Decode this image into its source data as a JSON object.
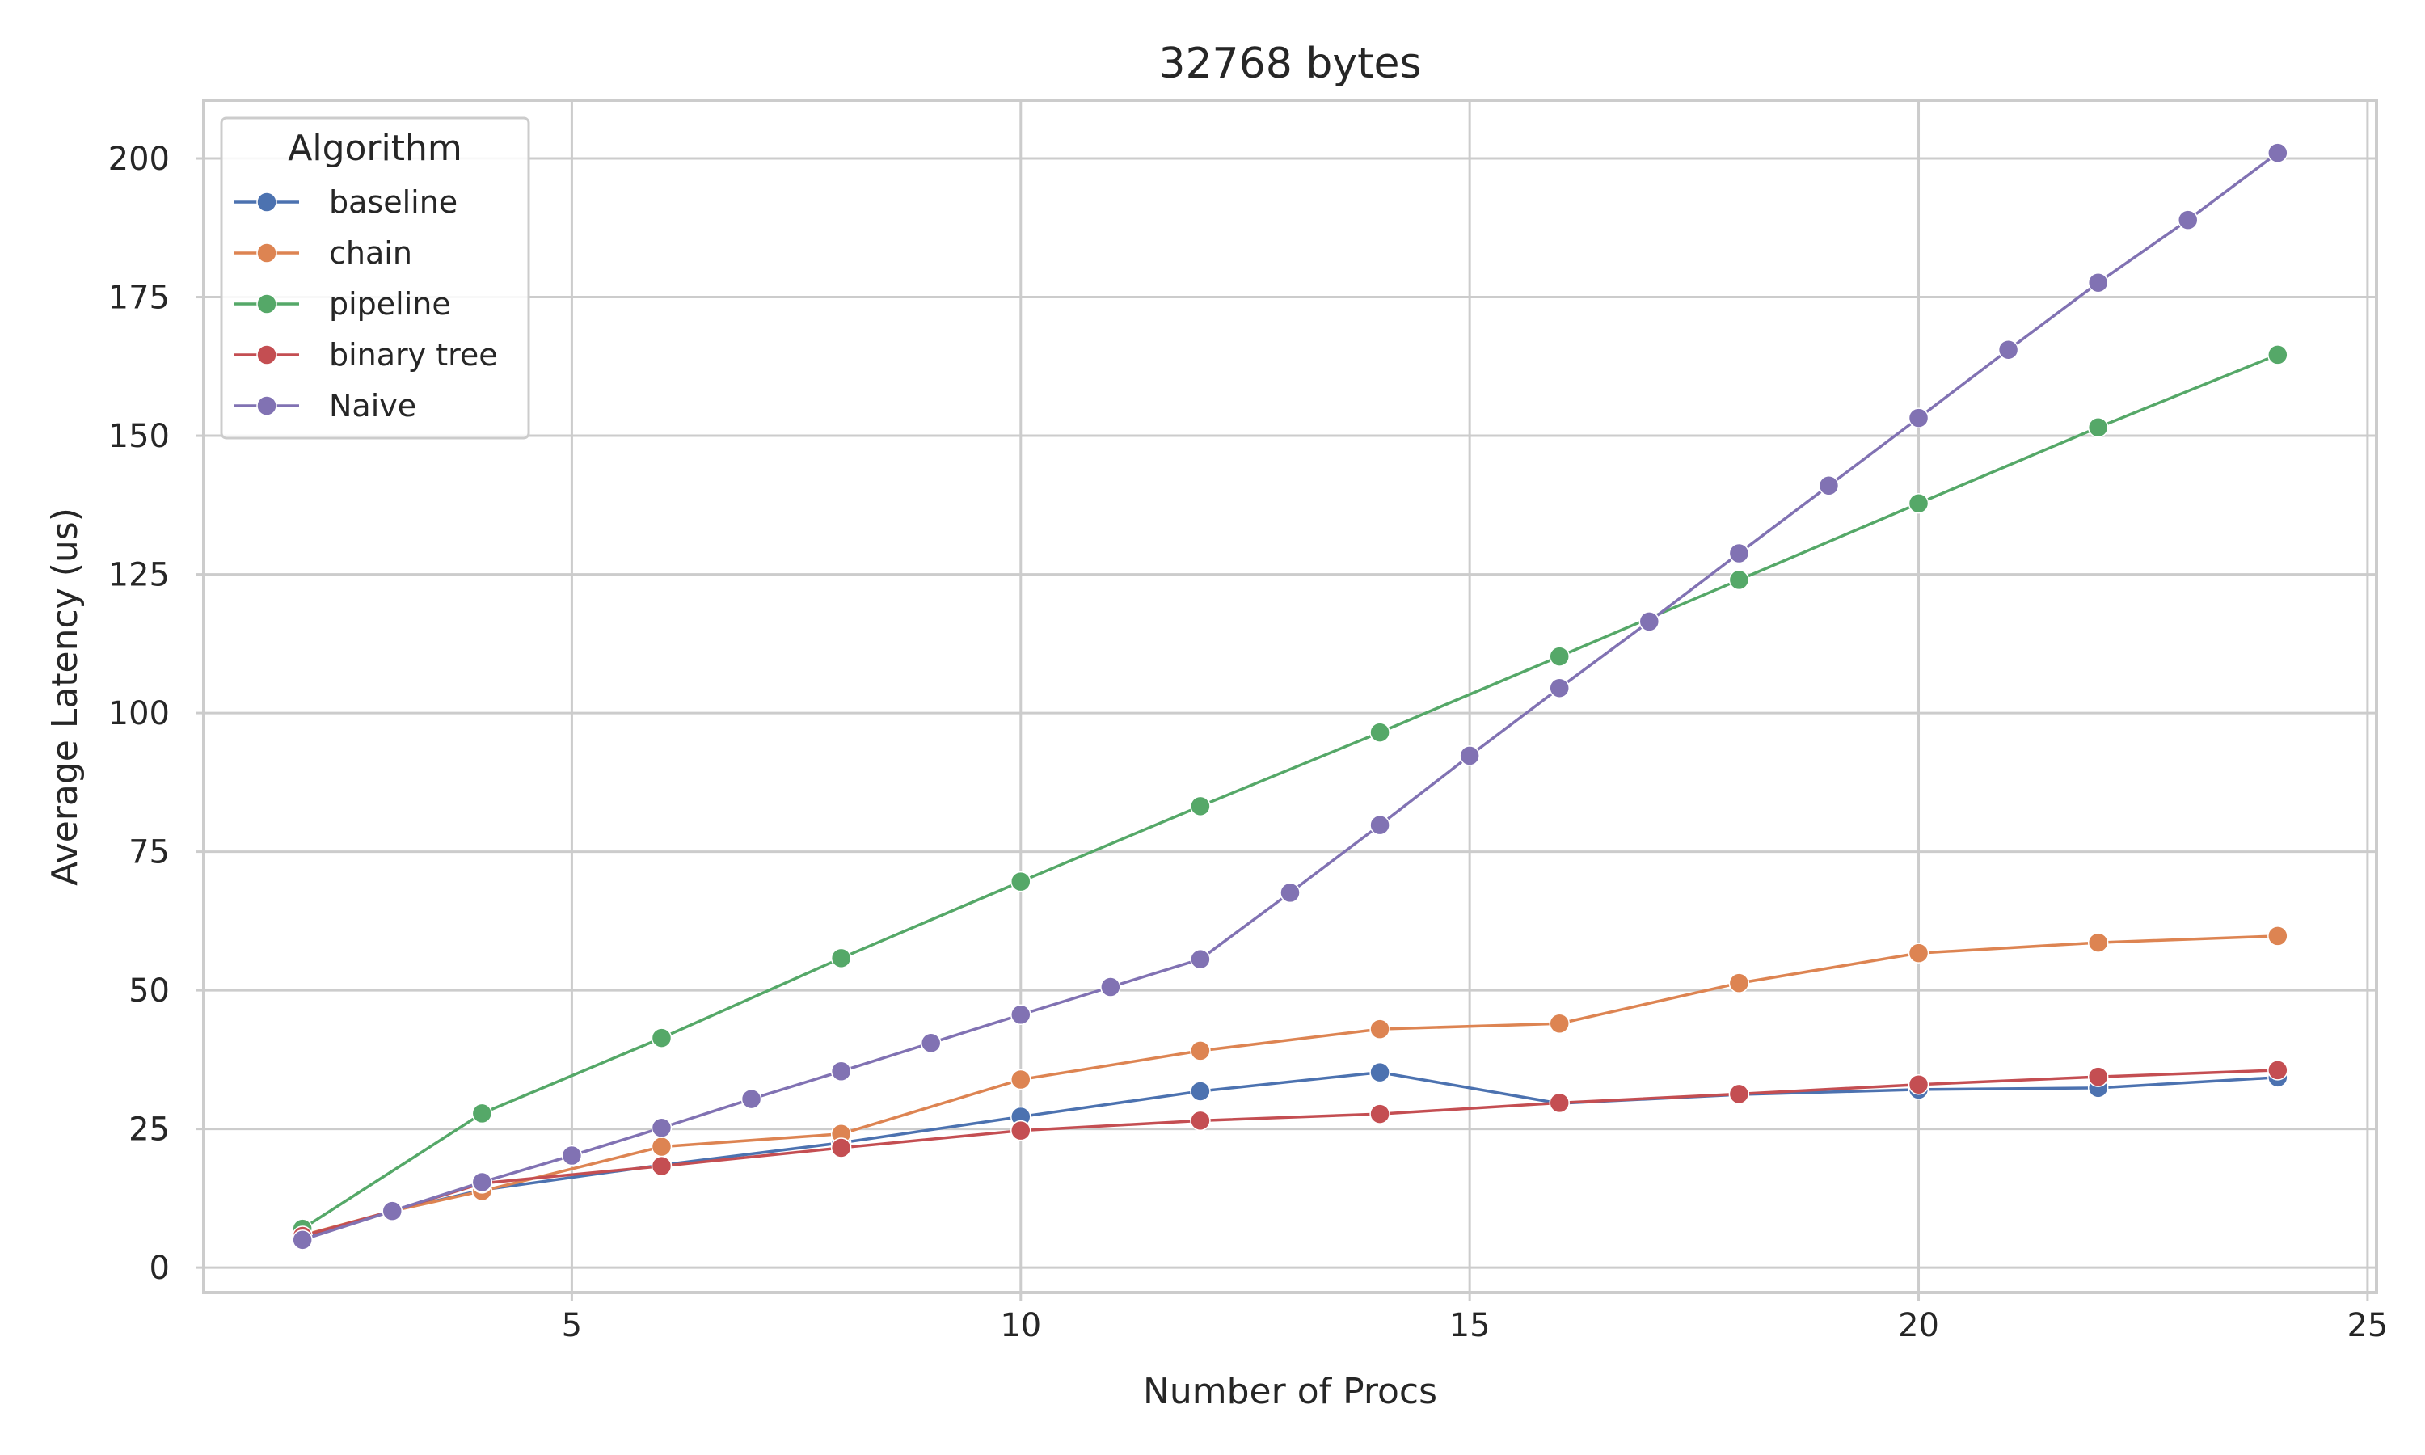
{
  "chart_data": {
    "type": "line",
    "title": "32768 bytes",
    "xlabel": "Number of Procs",
    "ylabel": "Average Latency (us)",
    "xlim": [
      0.9,
      25.1
    ],
    "ylim": [
      -4.5,
      210.5
    ],
    "xticks": [
      5,
      10,
      15,
      20,
      25
    ],
    "yticks": [
      0,
      25,
      50,
      75,
      100,
      125,
      150,
      175,
      200
    ],
    "grid": true,
    "legend": {
      "title": "Algorithm",
      "placement": "top-left"
    },
    "series": [
      {
        "name": "baseline",
        "color": "#4c72b0",
        "x": [
          2,
          3,
          4,
          6,
          8,
          10,
          12,
          14,
          16,
          18,
          20,
          22,
          24
        ],
        "y": [
          5.5,
          10.2,
          14.0,
          18.5,
          22.5,
          27.2,
          31.8,
          35.2,
          29.6,
          31.2,
          32.1,
          32.4,
          34.3
        ]
      },
      {
        "name": "chain",
        "color": "#dd8452",
        "x": [
          2,
          3,
          4,
          6,
          8,
          10,
          12,
          14,
          16,
          18,
          20,
          22,
          24
        ],
        "y": [
          5.8,
          10.2,
          13.8,
          21.8,
          24.1,
          33.9,
          39.1,
          43.0,
          44.0,
          51.3,
          56.7,
          58.6,
          59.8
        ]
      },
      {
        "name": "pipeline",
        "color": "#55a868",
        "x": [
          2,
          4,
          6,
          8,
          10,
          12,
          14,
          16,
          18,
          20,
          22,
          24
        ],
        "y": [
          7.0,
          27.8,
          41.4,
          55.8,
          69.6,
          83.2,
          96.5,
          110.2,
          124.0,
          137.8,
          151.5,
          164.6
        ]
      },
      {
        "name": "binary tree",
        "color": "#c44e52",
        "x": [
          2,
          3,
          4,
          6,
          8,
          10,
          12,
          14,
          16,
          18,
          20,
          22,
          24
        ],
        "y": [
          5.7,
          10.2,
          15.2,
          18.3,
          21.6,
          24.7,
          26.5,
          27.7,
          29.7,
          31.3,
          33.0,
          34.4,
          35.6
        ]
      },
      {
        "name": "Naive",
        "color": "#8172b3",
        "x": [
          2,
          3,
          4,
          5,
          6,
          7,
          8,
          9,
          10,
          11,
          12,
          13,
          14,
          15,
          16,
          17,
          18,
          19,
          20,
          21,
          22,
          23,
          24
        ],
        "y": [
          5.0,
          10.2,
          15.4,
          20.2,
          25.2,
          30.4,
          35.4,
          40.5,
          45.6,
          50.6,
          55.6,
          67.6,
          79.8,
          92.3,
          104.5,
          116.5,
          128.8,
          141.0,
          153.2,
          165.5,
          177.6,
          188.9,
          201.0
        ]
      }
    ]
  }
}
